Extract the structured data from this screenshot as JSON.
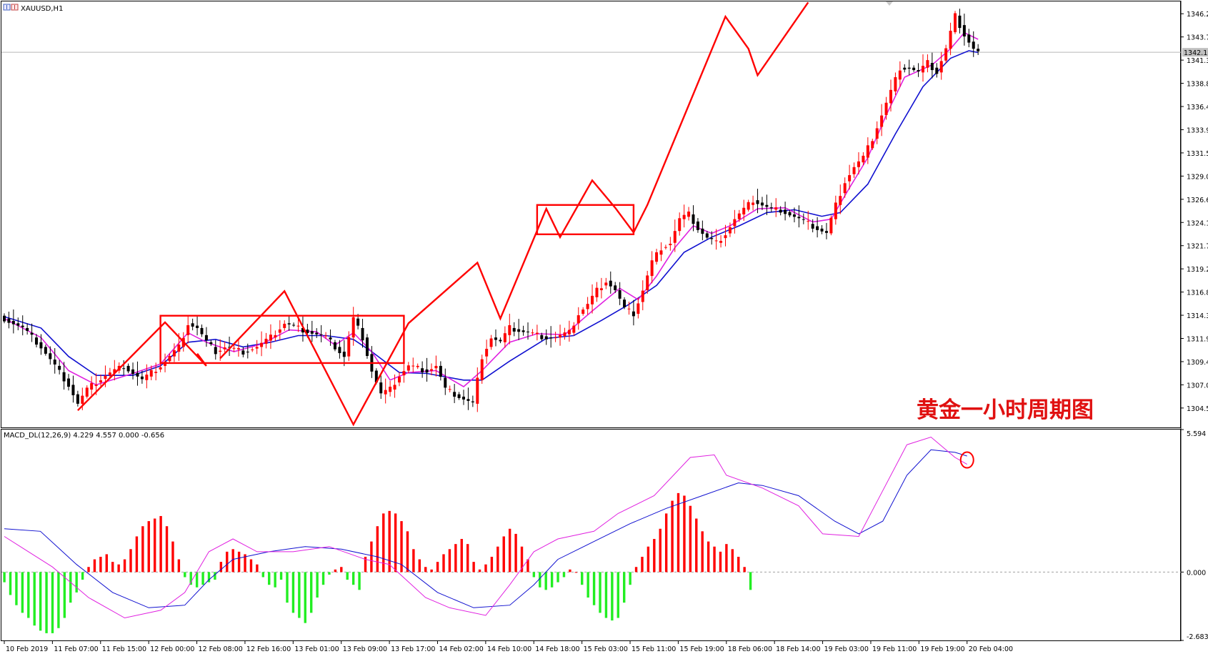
{
  "window": {
    "symbol_label": "XAUUSD,H1",
    "macd_label": "MACD_DL(12,26,9) 4.229 4.557 0.000 -0.656",
    "chart_caption": "黄金一小时周期图"
  },
  "colors": {
    "bull": "#ff0000",
    "bear": "#000000",
    "fast_ma": "#e020e0",
    "slow_ma": "#1010d0",
    "macd_pos": "#ff0000",
    "macd_neg": "#22ee22",
    "annotation": "#ff0000"
  },
  "chart_data": [
    {
      "type": "candlestick",
      "title": "XAUUSD,H1",
      "ylim": [
        1302.5,
        1347.5
      ],
      "y_ticks": [
        1346.2,
        1343.75,
        1341.3,
        1338.85,
        1336.4,
        1333.95,
        1331.5,
        1329.05,
        1326.6,
        1324.15,
        1321.7,
        1319.25,
        1316.8,
        1314.35,
        1311.9,
        1309.45,
        1307.0,
        1304.55
      ],
      "y_tick_labels": [
        "1346.20",
        "1343.75",
        "1341.30",
        "1338.85",
        "1336.40",
        "1333.95",
        "1331.50",
        "1329.05",
        "1326.60",
        "1324.15",
        "1321.70",
        "1319.25",
        "1316.80",
        "1314.35",
        "1311.90",
        "1309.45",
        "1307.00",
        "1304.55"
      ],
      "current_price": 1342.13,
      "current_price_label": "1342.13",
      "price_path": [
        [
          0,
          1314
        ],
        [
          4,
          1313
        ],
        [
          8,
          1311
        ],
        [
          11,
          1309
        ],
        [
          14,
          1307
        ],
        [
          16,
          1305
        ],
        [
          18,
          1306.5
        ],
        [
          22,
          1308
        ],
        [
          26,
          1309
        ],
        [
          30,
          1307.5
        ],
        [
          34,
          1309
        ],
        [
          38,
          1311
        ],
        [
          40,
          1313.5
        ],
        [
          42,
          1313
        ],
        [
          44,
          1311.5
        ],
        [
          46,
          1310.5
        ],
        [
          48,
          1311
        ],
        [
          52,
          1310.5
        ],
        [
          55,
          1311
        ],
        [
          58,
          1312
        ],
        [
          61,
          1313.5
        ],
        [
          64,
          1313
        ],
        [
          67,
          1312.5
        ],
        [
          70,
          1312
        ],
        [
          72,
          1311
        ],
        [
          74,
          1310
        ],
        [
          76,
          1314
        ],
        [
          78,
          1312
        ],
        [
          80,
          1308.5
        ],
        [
          82,
          1306
        ],
        [
          84,
          1306.5
        ],
        [
          86,
          1308
        ],
        [
          88,
          1309
        ],
        [
          92,
          1308.5
        ],
        [
          94,
          1309
        ],
        [
          96,
          1306.5
        ],
        [
          98,
          1306
        ],
        [
          100,
          1305.5
        ],
        [
          102,
          1305
        ],
        [
          104,
          1310
        ],
        [
          106,
          1312
        ],
        [
          108,
          1311.5
        ],
        [
          110,
          1313
        ],
        [
          114,
          1312.5
        ],
        [
          118,
          1312
        ],
        [
          120,
          1312
        ],
        [
          123,
          1312.5
        ],
        [
          125,
          1314.5
        ],
        [
          127,
          1315.5
        ],
        [
          129,
          1317
        ],
        [
          131,
          1318
        ],
        [
          133,
          1317
        ],
        [
          135,
          1315
        ],
        [
          137,
          1314.5
        ],
        [
          139,
          1317
        ],
        [
          141,
          1320
        ],
        [
          143,
          1321.5
        ],
        [
          145,
          1322
        ],
        [
          147,
          1324.5
        ],
        [
          149,
          1325
        ],
        [
          151,
          1323.5
        ],
        [
          153,
          1322.5
        ],
        [
          155,
          1322
        ],
        [
          157,
          1323
        ],
        [
          159,
          1324.5
        ],
        [
          161,
          1325.5
        ],
        [
          163,
          1326.5
        ],
        [
          165,
          1326
        ],
        [
          167,
          1325.5
        ],
        [
          169,
          1325.5
        ],
        [
          171,
          1325
        ],
        [
          173,
          1324.5
        ],
        [
          175,
          1324
        ],
        [
          177,
          1323.5
        ],
        [
          179,
          1323
        ],
        [
          181,
          1326
        ],
        [
          183,
          1328.5
        ],
        [
          185,
          1330
        ],
        [
          187,
          1331
        ],
        [
          189,
          1333
        ],
        [
          191,
          1335.5
        ],
        [
          193,
          1338
        ],
        [
          195,
          1340.5
        ],
        [
          197,
          1340.5
        ],
        [
          199,
          1340
        ],
        [
          201,
          1341
        ],
        [
          203,
          1340
        ],
        [
          205,
          1342.5
        ],
        [
          207,
          1346
        ],
        [
          209,
          1344
        ],
        [
          211,
          1342.5
        ],
        [
          212,
          1342.13
        ]
      ],
      "fast_ma_points": [
        [
          0,
          1314
        ],
        [
          8,
          1312
        ],
        [
          14,
          1308.5
        ],
        [
          20,
          1307
        ],
        [
          28,
          1308.2
        ],
        [
          34,
          1309.2
        ],
        [
          40,
          1312.5
        ],
        [
          44,
          1311.5
        ],
        [
          50,
          1310.5
        ],
        [
          56,
          1311.3
        ],
        [
          62,
          1312.8
        ],
        [
          68,
          1312.6
        ],
        [
          72,
          1311.2
        ],
        [
          76,
          1312.5
        ],
        [
          80,
          1310.5
        ],
        [
          84,
          1307.5
        ],
        [
          88,
          1308.3
        ],
        [
          94,
          1308.5
        ],
        [
          100,
          1306.8
        ],
        [
          104,
          1308.5
        ],
        [
          110,
          1311.5
        ],
        [
          116,
          1312.4
        ],
        [
          122,
          1312.3
        ],
        [
          128,
          1314.8
        ],
        [
          134,
          1317.2
        ],
        [
          138,
          1316
        ],
        [
          142,
          1318.5
        ],
        [
          146,
          1321.5
        ],
        [
          150,
          1323.8
        ],
        [
          154,
          1323
        ],
        [
          158,
          1323.8
        ],
        [
          164,
          1325.6
        ],
        [
          170,
          1325.7
        ],
        [
          176,
          1324.2
        ],
        [
          180,
          1324.5
        ],
        [
          184,
          1327.8
        ],
        [
          188,
          1331
        ],
        [
          192,
          1335.5
        ],
        [
          196,
          1339.5
        ],
        [
          202,
          1340.8
        ],
        [
          206,
          1342.5
        ],
        [
          209,
          1344.2
        ],
        [
          212,
          1343.5
        ]
      ],
      "slow_ma_points": [
        [
          0,
          1314.2
        ],
        [
          8,
          1313
        ],
        [
          14,
          1310
        ],
        [
          20,
          1308
        ],
        [
          28,
          1308
        ],
        [
          34,
          1309
        ],
        [
          40,
          1311.5
        ],
        [
          46,
          1311.8
        ],
        [
          52,
          1311
        ],
        [
          58,
          1311.5
        ],
        [
          64,
          1312.2
        ],
        [
          70,
          1312.2
        ],
        [
          76,
          1311.8
        ],
        [
          80,
          1310.5
        ],
        [
          86,
          1308.3
        ],
        [
          92,
          1308.2
        ],
        [
          100,
          1307.5
        ],
        [
          104,
          1307.5
        ],
        [
          110,
          1309.5
        ],
        [
          118,
          1311.9
        ],
        [
          124,
          1312.2
        ],
        [
          130,
          1313.8
        ],
        [
          136,
          1315.5
        ],
        [
          142,
          1317.5
        ],
        [
          148,
          1321
        ],
        [
          154,
          1322.6
        ],
        [
          160,
          1323.8
        ],
        [
          166,
          1325.2
        ],
        [
          172,
          1325.5
        ],
        [
          178,
          1324.8
        ],
        [
          182,
          1325.2
        ],
        [
          188,
          1328.2
        ],
        [
          194,
          1333.5
        ],
        [
          200,
          1338.5
        ],
        [
          206,
          1341.5
        ],
        [
          210,
          1342.3
        ],
        [
          212,
          1342.1
        ]
      ],
      "x_ticks": [
        [
          0,
          "10 Feb 2019"
        ],
        [
          8,
          "11 Feb 07:00"
        ],
        [
          16,
          "11 Feb 15:00"
        ],
        [
          24,
          "12 Feb 00:00"
        ],
        [
          32,
          "12 Feb 08:00"
        ],
        [
          40,
          "12 Feb 16:00"
        ],
        [
          48,
          "13 Feb 01:00"
        ],
        [
          56,
          "13 Feb 09:00"
        ],
        [
          64,
          "13 Feb 17:00"
        ],
        [
          72,
          "14 Feb 02:00"
        ],
        [
          80,
          "14 Feb 10:00"
        ],
        [
          88,
          "14 Feb 18:00"
        ],
        [
          96,
          "15 Feb 03:00"
        ],
        [
          104,
          "15 Feb 11:00"
        ],
        [
          112,
          "15 Feb 19:00"
        ],
        [
          120,
          "18 Feb 06:00"
        ],
        [
          128,
          "18 Feb 14:00"
        ],
        [
          136,
          "19 Feb 03:00"
        ],
        [
          144,
          "19 Feb 11:00"
        ],
        [
          152,
          "19 Feb 19:00"
        ],
        [
          160,
          "20 Feb 04:00"
        ]
      ],
      "annotations": {
        "zigzag_1": [
          [
            16,
            1304.3
          ],
          [
            35,
            1313.6
          ],
          [
            44,
            1309.0
          ],
          [
            42,
            1310.3
          ]
        ],
        "zigzag_2": [
          [
            47,
            1309.8
          ],
          [
            61,
            1316.9
          ],
          [
            76,
            1302.8
          ],
          [
            88,
            1313.5
          ],
          [
            103,
            1319.9
          ],
          [
            108,
            1314.0
          ],
          [
            118,
            1325.6
          ],
          [
            121,
            1322.6
          ],
          [
            128,
            1328.6
          ],
          [
            133,
            1325.7
          ],
          [
            137,
            1323.1
          ],
          [
            140,
            1326.0
          ],
          [
            157,
            1345.9
          ],
          [
            162,
            1342.5
          ],
          [
            164,
            1339.7
          ],
          [
            175,
            1347.4
          ]
        ],
        "box_1": {
          "x0": 34,
          "x1": 87,
          "y_top": 1314.3,
          "y_bottom": 1309.3
        },
        "box_2": {
          "x0": 116,
          "x1": 137,
          "y_top": 1326.0,
          "y_bottom": 1322.9
        },
        "circle_marker": {
          "x": 160,
          "y": 4.4
        }
      }
    },
    {
      "type": "bar",
      "title": "MACD_DL(12,26,9) 4.229 4.557 0.000 -0.656",
      "ylim": [
        -2.683,
        5.594
      ],
      "y_tick_labels": [
        "5.594",
        "0.000",
        "-2.683"
      ],
      "y_ticks": [
        5.594,
        0.0,
        -2.683
      ],
      "macd_line_points": [
        [
          0,
          1.4
        ],
        [
          8,
          0.2
        ],
        [
          14,
          -1.0
        ],
        [
          20,
          -1.8
        ],
        [
          26,
          -1.5
        ],
        [
          30,
          -0.8
        ],
        [
          34,
          0.8
        ],
        [
          38,
          1.3
        ],
        [
          42,
          0.8
        ],
        [
          48,
          0.8
        ],
        [
          54,
          1.0
        ],
        [
          60,
          0.5
        ],
        [
          64,
          0.3
        ],
        [
          70,
          -1.0
        ],
        [
          74,
          -1.4
        ],
        [
          80,
          -1.7
        ],
        [
          84,
          -0.5
        ],
        [
          88,
          0.8
        ],
        [
          92,
          1.3
        ],
        [
          98,
          1.6
        ],
        [
          102,
          2.3
        ],
        [
          108,
          3.0
        ],
        [
          114,
          4.5
        ],
        [
          118,
          4.6
        ],
        [
          120,
          3.8
        ],
        [
          126,
          3.3
        ],
        [
          132,
          2.6
        ],
        [
          136,
          1.5
        ],
        [
          142,
          1.4
        ],
        [
          146,
          3.2
        ],
        [
          150,
          5.0
        ],
        [
          154,
          5.3
        ],
        [
          158,
          4.5
        ],
        [
          160,
          4.229
        ]
      ],
      "signal_line_points": [
        [
          0,
          1.7
        ],
        [
          6,
          1.6
        ],
        [
          12,
          0.3
        ],
        [
          18,
          -0.8
        ],
        [
          24,
          -1.4
        ],
        [
          30,
          -1.3
        ],
        [
          34,
          -0.3
        ],
        [
          38,
          0.5
        ],
        [
          44,
          0.8
        ],
        [
          50,
          1.0
        ],
        [
          56,
          0.9
        ],
        [
          62,
          0.6
        ],
        [
          66,
          0.3
        ],
        [
          72,
          -0.8
        ],
        [
          78,
          -1.4
        ],
        [
          84,
          -1.3
        ],
        [
          88,
          -0.5
        ],
        [
          92,
          0.5
        ],
        [
          98,
          1.2
        ],
        [
          104,
          1.9
        ],
        [
          110,
          2.5
        ],
        [
          116,
          3.0
        ],
        [
          122,
          3.5
        ],
        [
          126,
          3.4
        ],
        [
          132,
          3.0
        ],
        [
          138,
          2.0
        ],
        [
          142,
          1.5
        ],
        [
          146,
          2.0
        ],
        [
          150,
          3.8
        ],
        [
          154,
          4.8
        ],
        [
          158,
          4.7
        ],
        [
          160,
          4.557
        ]
      ],
      "histogram": [
        -0.4,
        -0.9,
        -1.3,
        -1.6,
        -1.8,
        -2.1,
        -2.3,
        -2.4,
        -2.4,
        -2.2,
        -1.8,
        -1.2,
        -0.8,
        -0.3,
        0.2,
        0.5,
        0.6,
        0.7,
        0.4,
        0.3,
        0.5,
        0.9,
        1.4,
        1.8,
        2.0,
        2.1,
        2.2,
        1.8,
        1.2,
        0.5,
        -0.2,
        -0.5,
        -0.6,
        -0.5,
        -0.4,
        -0.3,
        0.4,
        0.8,
        0.9,
        0.8,
        0.7,
        0.5,
        0.3,
        -0.2,
        -0.5,
        -0.6,
        -0.3,
        -1.2,
        -1.6,
        -1.8,
        -2.0,
        -1.6,
        -1.0,
        -0.5,
        -0.1,
        0.1,
        0.2,
        -0.3,
        -0.5,
        -0.7,
        0.6,
        1.2,
        1.8,
        2.3,
        2.4,
        2.3,
        2.0,
        1.6,
        0.9,
        0.5,
        0.2,
        0.1,
        0.4,
        0.7,
        0.9,
        1.1,
        1.3,
        1.1,
        0.4,
        0.1,
        0.3,
        0.6,
        1.0,
        1.4,
        1.7,
        1.5,
        1.0,
        0.5,
        -0.2,
        -0.6,
        -0.7,
        -0.6,
        -0.4,
        -0.2,
        0.1,
        0.0,
        -0.5,
        -1.0,
        -1.3,
        -1.6,
        -1.8,
        -1.9,
        -1.8,
        -1.2,
        -0.5,
        0.2,
        0.6,
        1.0,
        1.3,
        1.7,
        2.3,
        2.8,
        3.1,
        3.0,
        2.6,
        2.1,
        1.6,
        1.2,
        1.0,
        0.8,
        1.1,
        0.9,
        0.6,
        0.2,
        -0.7
      ]
    }
  ]
}
